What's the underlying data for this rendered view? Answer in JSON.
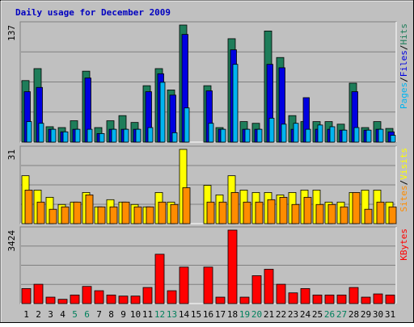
{
  "chart_data": {
    "type": "bar",
    "title": "Daily usage for December 2009",
    "categories": [
      "1",
      "2",
      "3",
      "4",
      "5",
      "6",
      "7",
      "8",
      "9",
      "10",
      "11",
      "12",
      "13",
      "14",
      "15",
      "16",
      "17",
      "18",
      "19",
      "20",
      "21",
      "22",
      "23",
      "24",
      "25",
      "26",
      "27",
      "28",
      "29",
      "30",
      "31"
    ],
    "weekend_days": [
      "5",
      "6",
      "12",
      "13",
      "19",
      "20",
      "26",
      "27"
    ],
    "colors": {
      "background": "#C0C0C0",
      "title": "#0000C0",
      "hits": "#1E7D5A",
      "files": "#0000E0",
      "pages": "#00B4F0",
      "visits": "#FFFF00",
      "sites": "#FF8C00",
      "kbytes": "#FF0000",
      "weekend_label": "#00805C",
      "weekday_label": "#000000"
    },
    "panels": [
      {
        "id": "hits-files-pages",
        "ymax_label": "137",
        "ymax": 137,
        "legend": [
          {
            "label": "Pages",
            "color": "#00B4F0"
          },
          {
            "label": "/",
            "color": "#000000"
          },
          {
            "label": "Files",
            "color": "#0000E0"
          },
          {
            "label": "/",
            "color": "#000000"
          },
          {
            "label": "Hits",
            "color": "#1E7D5A"
          }
        ],
        "series": [
          {
            "name": "Hits",
            "values": [
              72,
              86,
              18,
              17,
              25,
              83,
              17,
              25,
              31,
              23,
              66,
              86,
              61,
              137,
              0,
              66,
              17,
              121,
              24,
              22,
              130,
              99,
              31,
              24,
              24,
              24,
              21,
              69,
              17,
              24,
              16
            ]
          },
          {
            "name": "Files",
            "values": [
              59,
              64,
              15,
              12,
              15,
              75,
              10,
              15,
              15,
              15,
              59,
              80,
              55,
              126,
              0,
              60,
              15,
              108,
              15,
              15,
              91,
              87,
              15,
              52,
              15,
              15,
              14,
              59,
              14,
              15,
              12
            ]
          },
          {
            "name": "Pages",
            "values": [
              24,
              22,
              15,
              12,
              15,
              15,
              10,
              15,
              15,
              15,
              17,
              70,
              11,
              40,
              0,
              22,
              15,
              91,
              15,
              15,
              28,
              21,
              22,
              15,
              20,
              18,
              14,
              17,
              14,
              15,
              8
            ]
          }
        ]
      },
      {
        "id": "visits-sites",
        "ymax_label": "31",
        "ymax": 31,
        "legend": [
          {
            "label": "Sites",
            "color": "#FF8C00"
          },
          {
            "label": "/",
            "color": "#000000"
          },
          {
            "label": "Visits",
            "color": "#FFFF00"
          }
        ],
        "series": [
          {
            "name": "Visits",
            "values": [
              20,
              14,
              11,
              8,
              9,
              13,
              7,
              10,
              9,
              8,
              7,
              13,
              9,
              31,
              0,
              16,
              12,
              20,
              14,
              13,
              13,
              12,
              13,
              14,
              14,
              9,
              9,
              13,
              14,
              14,
              9
            ]
          },
          {
            "name": "Sites",
            "values": [
              14,
              9,
              6,
              7,
              9,
              12,
              7,
              7,
              9,
              7,
              7,
              9,
              8,
              15,
              0,
              9,
              9,
              13,
              9,
              9,
              10,
              11,
              8,
              11,
              8,
              8,
              7,
              13,
              6,
              9,
              7
            ]
          }
        ]
      },
      {
        "id": "kbytes",
        "ymax_label": "3424",
        "ymax": 3424,
        "legend": [
          {
            "label": "KBytes",
            "color": "#FF0000"
          }
        ],
        "series": [
          {
            "name": "KBytes",
            "values": [
              700,
              900,
              300,
              200,
              400,
              800,
              600,
              400,
              350,
              350,
              750,
              2300,
              600,
              1700,
              0,
              1700,
              300,
              3424,
              300,
              1300,
              1600,
              900,
              500,
              700,
              400,
              400,
              400,
              750,
              300,
              450,
              400
            ]
          }
        ]
      }
    ]
  }
}
